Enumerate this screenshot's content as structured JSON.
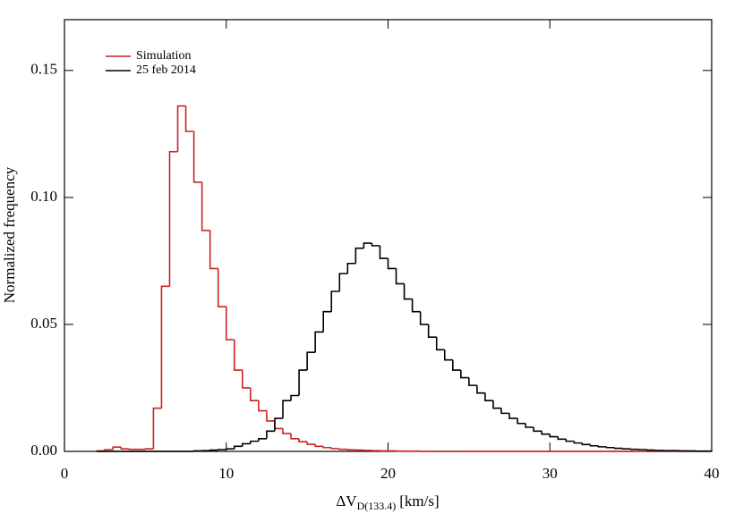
{
  "chart_data": {
    "type": "histogram",
    "xlabel": {
      "main": "ΔV",
      "sub": "D(133.4)",
      "unit": "[km/s]"
    },
    "ylabel": "Normalized frequency",
    "bins": [
      2,
      2.5,
      3,
      3.5,
      4,
      4.5,
      5,
      5.5,
      6,
      6.5,
      7,
      7.5,
      8,
      8.5,
      9,
      9.5,
      10,
      10.5,
      11,
      11.5,
      12,
      12.5,
      13,
      13.5,
      14,
      14.5,
      15,
      15.5,
      16,
      16.5,
      17,
      17.5,
      18,
      18.5,
      19,
      19.5,
      20,
      20.5,
      21,
      21.5,
      22,
      22.5,
      23,
      23.5,
      24,
      24.5,
      25,
      25.5,
      26,
      26.5,
      27,
      27.5,
      28,
      28.5,
      29,
      29.5,
      30,
      30.5,
      31,
      31.5,
      32,
      32.5,
      33,
      33.5,
      34,
      34.5,
      35,
      35.5,
      36,
      36.5,
      37,
      37.5,
      38,
      38.5,
      39,
      39.5,
      40
    ],
    "series": [
      {
        "name": "Simulation",
        "color": "#cc2222",
        "values": [
          0.0002,
          0.0007,
          0.0017,
          0.001,
          0.0008,
          0.0008,
          0.001,
          0.017,
          0.065,
          0.118,
          0.136,
          0.126,
          0.106,
          0.087,
          0.072,
          0.057,
          0.044,
          0.032,
          0.025,
          0.02,
          0.016,
          0.012,
          0.009,
          0.007,
          0.005,
          0.0038,
          0.0028,
          0.002,
          0.0015,
          0.0011,
          0.0008,
          0.0006,
          0.0005,
          0.0004,
          0.0003,
          0.0002,
          0.0002,
          0.0001,
          0.0001,
          0.0001,
          0,
          0,
          0,
          0,
          0,
          0,
          0,
          0,
          0,
          0,
          0,
          0,
          0,
          0,
          0,
          0,
          0,
          0,
          0,
          0,
          0,
          0,
          0,
          0,
          0,
          0,
          0,
          0,
          0,
          0,
          0,
          0,
          0,
          0,
          0,
          0
        ]
      },
      {
        "name": "25 feb 2014",
        "color": "#000000",
        "values": [
          0,
          0,
          0,
          0,
          0,
          0,
          0,
          0,
          0,
          0,
          0,
          0,
          0.0002,
          0.0003,
          0.0005,
          0.0007,
          0.001,
          0.002,
          0.003,
          0.004,
          0.005,
          0.008,
          0.013,
          0.02,
          0.022,
          0.032,
          0.039,
          0.047,
          0.055,
          0.063,
          0.07,
          0.074,
          0.08,
          0.082,
          0.081,
          0.076,
          0.072,
          0.066,
          0.06,
          0.055,
          0.05,
          0.045,
          0.04,
          0.036,
          0.032,
          0.029,
          0.026,
          0.023,
          0.02,
          0.017,
          0.015,
          0.013,
          0.011,
          0.0095,
          0.008,
          0.0068,
          0.0058,
          0.0048,
          0.004,
          0.0033,
          0.0027,
          0.0022,
          0.0018,
          0.0015,
          0.0012,
          0.001,
          0.0008,
          0.0007,
          0.0005,
          0.0004,
          0.0003,
          0.0003,
          0.0002,
          0.0002,
          0.0001,
          0.0001
        ]
      }
    ],
    "xlim": [
      0,
      40
    ],
    "xticks": [
      0,
      10,
      20,
      30,
      40
    ],
    "ylim": [
      0,
      0.17
    ],
    "yticks": [
      {
        "value": 0,
        "label": "0.00"
      },
      {
        "value": 0.05,
        "label": "0.05"
      },
      {
        "value": 0.1,
        "label": "0.10"
      },
      {
        "value": 0.15,
        "label": "0.15"
      }
    ],
    "legend": "upper left"
  }
}
